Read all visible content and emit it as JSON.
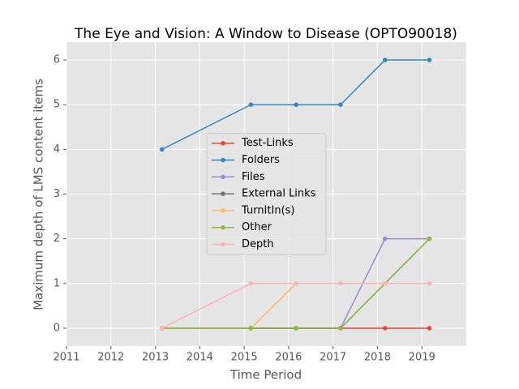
{
  "chart_data": {
    "type": "line",
    "title": "The Eye and Vision: A Window to Disease (OPTO90018)",
    "x_label": "Time Period",
    "y_label": "Maximum depth of LMS content items",
    "x": [
      2013.15,
      2015.15,
      2016.17,
      2017.17,
      2018.17,
      2019.17
    ],
    "series": [
      {
        "name": "Test-Links",
        "color": "#E24A33",
        "values": [
          0,
          0,
          0,
          0,
          0,
          0
        ]
      },
      {
        "name": "Folders",
        "color": "#348ABD",
        "values": [
          4,
          5,
          5,
          5,
          6,
          6
        ]
      },
      {
        "name": "Files",
        "color": "#988ED5",
        "values": [
          0,
          0,
          0,
          0,
          2,
          2
        ]
      },
      {
        "name": "External Links",
        "color": "#777777",
        "values": [
          0,
          0,
          0,
          0,
          1,
          2
        ]
      },
      {
        "name": "TurnItIn(s)",
        "color": "#FBC15E",
        "values": [
          0,
          0,
          1,
          1,
          1,
          1
        ]
      },
      {
        "name": "Other",
        "color": "#8EBA42",
        "values": [
          0,
          0,
          0,
          0,
          1,
          2
        ]
      },
      {
        "name": "Depth",
        "color": "#FFB5B8",
        "values": [
          0,
          1,
          1,
          1,
          1,
          1
        ]
      }
    ],
    "xlim": [
      2011,
      2020
    ],
    "xticks": [
      2011,
      2012,
      2013,
      2014,
      2015,
      2016,
      2017,
      2018,
      2019
    ],
    "ylim": [
      -0.4,
      6.4
    ],
    "yticks": [
      0,
      1,
      2,
      3,
      4,
      5,
      6
    ],
    "grid": true,
    "legend": "center"
  }
}
